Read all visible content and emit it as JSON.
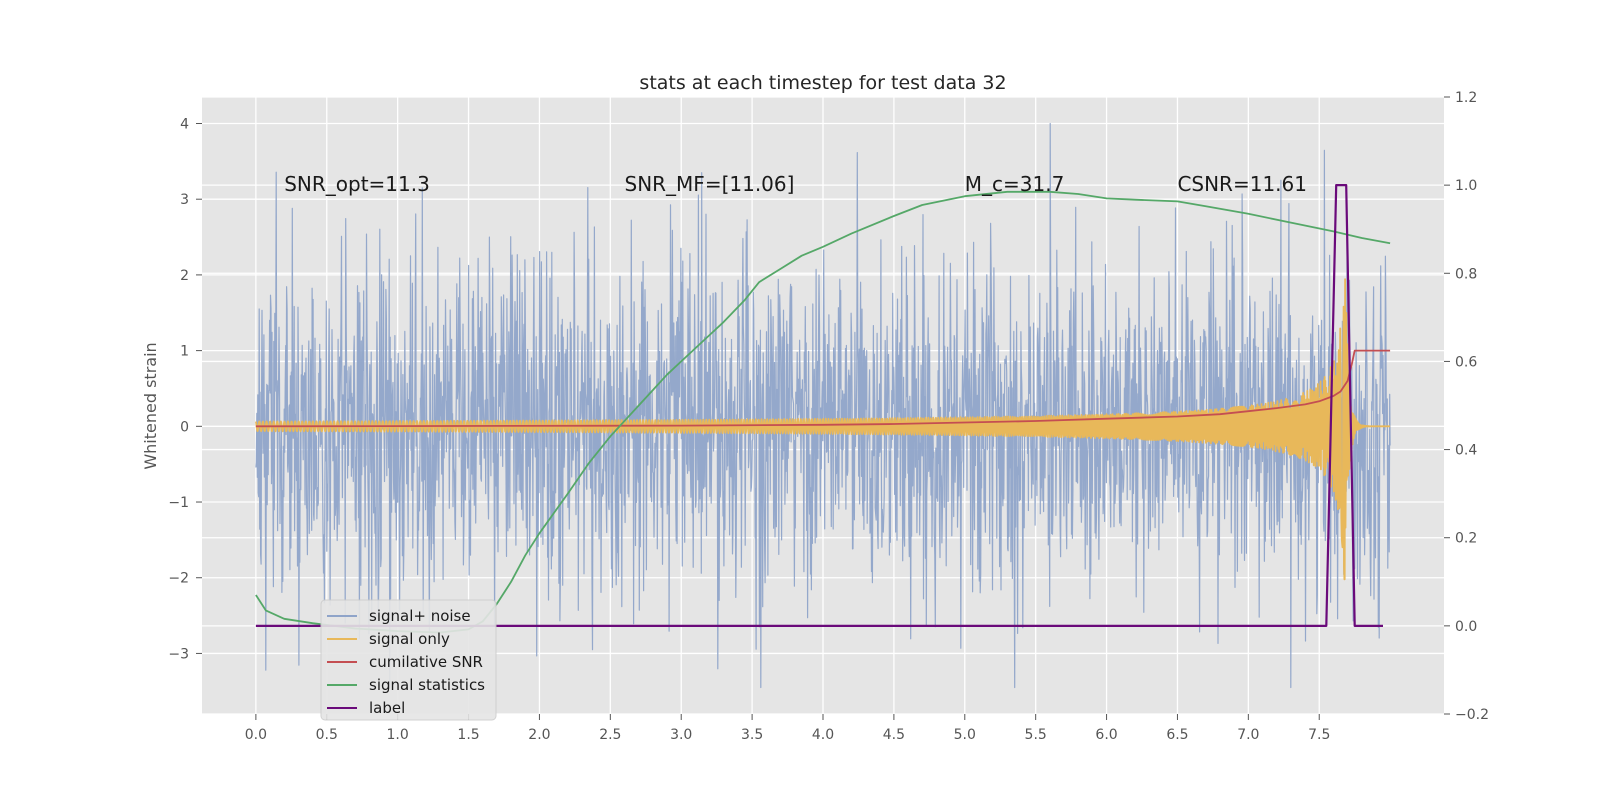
{
  "chart_data": {
    "type": "line",
    "title": "stats at each timestep for test data 32",
    "ylabel": "Whitened strain",
    "xlabel": "",
    "y2label": "",
    "xlim": [
      -0.38,
      8.38
    ],
    "ylim": [
      -3.8,
      4.35
    ],
    "y2lim": [
      -0.2,
      1.2
    ],
    "xticks": [
      "0.0",
      "0.5",
      "1.0",
      "1.5",
      "2.0",
      "2.5",
      "3.0",
      "3.5",
      "4.0",
      "4.5",
      "5.0",
      "5.5",
      "6.0",
      "6.5",
      "7.0",
      "7.5"
    ],
    "yticks": [
      "−3",
      "−2",
      "−1",
      "0",
      "1",
      "2",
      "3",
      "4"
    ],
    "y2ticks": [
      "−0.2",
      "0.0",
      "0.2",
      "0.4",
      "0.6",
      "0.8",
      "1.0",
      "1.2"
    ],
    "grid": true,
    "legend_position": "lower-left",
    "annotations": [
      {
        "text": "SNR_opt=11.3",
        "x": 0.2,
        "y": 3.2
      },
      {
        "text": "SNR_MF=[11.06]",
        "x": 2.6,
        "y": 3.2
      },
      {
        "text": "M_c=31.7",
        "x": 5.0,
        "y": 3.2
      },
      {
        "text": "CSNR=11.61",
        "x": 6.5,
        "y": 3.2
      }
    ],
    "series": [
      {
        "name": "signal+ noise",
        "color": "#8fa4c9",
        "axis": "left",
        "kind": "noise",
        "x_range": [
          0.0,
          8.0
        ],
        "typical_range": [
          -2.4,
          2.4
        ],
        "extremes": {
          "max": 4.0,
          "min": -3.45
        }
      },
      {
        "name": "signal only",
        "color": "#e8b85a",
        "axis": "left",
        "kind": "chirp",
        "x_range": [
          0.0,
          8.0
        ],
        "peak_time": 7.68,
        "peak_amplitude": 2.3
      },
      {
        "name": "cumilative SNR",
        "color": "#c44e52",
        "axis": "left",
        "x": [
          0.0,
          3.0,
          4.0,
          4.5,
          5.0,
          5.5,
          6.0,
          6.5,
          6.8,
          7.0,
          7.2,
          7.4,
          7.5,
          7.6,
          7.65,
          7.7,
          7.73,
          7.75,
          8.0
        ],
        "y": [
          0.0,
          0.01,
          0.02,
          0.03,
          0.05,
          0.07,
          0.1,
          0.13,
          0.16,
          0.2,
          0.24,
          0.29,
          0.33,
          0.4,
          0.46,
          0.6,
          0.82,
          1.0,
          1.0
        ]
      },
      {
        "name": "signal statistics",
        "color": "#55a868",
        "axis": "right",
        "x": [
          0.0,
          0.07,
          0.2,
          0.4,
          0.7,
          1.0,
          1.3,
          1.5,
          1.6,
          1.7,
          1.8,
          1.9,
          2.0,
          2.2,
          2.35,
          2.5,
          2.7,
          2.9,
          3.0,
          3.2,
          3.3,
          3.45,
          3.55,
          3.7,
          3.85,
          4.0,
          4.2,
          4.5,
          4.7,
          5.0,
          5.3,
          5.6,
          5.8,
          6.0,
          6.2,
          6.5,
          6.7,
          7.0,
          7.3,
          7.6,
          7.8,
          8.0
        ],
        "y": [
          0.07,
          0.035,
          0.016,
          0.006,
          -0.006,
          -0.012,
          -0.015,
          -0.008,
          0.01,
          0.05,
          0.1,
          0.16,
          0.21,
          0.3,
          0.37,
          0.43,
          0.5,
          0.57,
          0.6,
          0.66,
          0.69,
          0.74,
          0.78,
          0.81,
          0.84,
          0.86,
          0.89,
          0.93,
          0.955,
          0.975,
          0.985,
          0.985,
          0.98,
          0.97,
          0.967,
          0.963,
          0.952,
          0.935,
          0.915,
          0.895,
          0.88,
          0.868
        ]
      },
      {
        "name": "label",
        "color": "#6a0a7a",
        "axis": "right",
        "x": [
          0.0,
          7.55,
          7.62,
          7.69,
          7.75,
          7.95
        ],
        "y": [
          0.0,
          0.0,
          1.0,
          1.0,
          0.0,
          0.0
        ]
      }
    ]
  }
}
